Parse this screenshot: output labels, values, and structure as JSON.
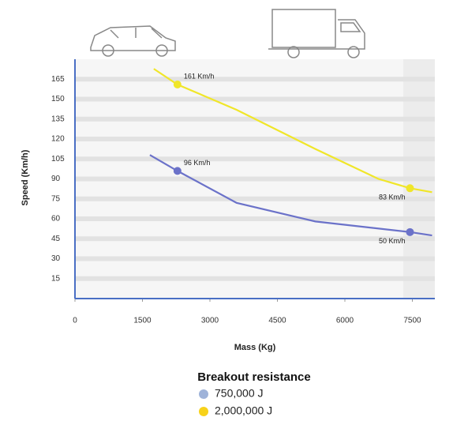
{
  "chart_data": {
    "type": "line",
    "x_label": "Mass (Kg)",
    "y_label": "Speed (Km/h)",
    "legend_title": "Breakout resistance",
    "xlim": [
      0,
      8000
    ],
    "xticks": [
      0,
      1500,
      3000,
      4500,
      6000,
      7500
    ],
    "ylim": [
      0,
      180
    ],
    "yticks": [
      15,
      30,
      45,
      60,
      75,
      90,
      105,
      120,
      135,
      150,
      165
    ],
    "grid": true,
    "series": [
      {
        "name": "750,000 J",
        "color": "#6b72c9",
        "legend_color": "#9fb3d9",
        "x": [
          1665,
          2278,
          3592,
          5344,
          7447,
          7938
        ],
        "values": [
          108,
          96,
          72,
          58,
          50,
          47.5
        ],
        "points": {
          "x": [
            2278,
            7447
          ],
          "values": [
            96,
            50
          ],
          "value_labels": [
            "96 Km/h",
            "50 Km/h"
          ]
        }
      },
      {
        "name": "2,000,000 J",
        "color": "#f0e629",
        "legend_color": "#f7d21a",
        "x": [
          1752,
          2278,
          3592,
          5344,
          6746,
          7447,
          7938
        ],
        "values": [
          172.8,
          161,
          142,
          112.5,
          90,
          83,
          80
        ],
        "points": {
          "x": [
            2278,
            7447
          ],
          "values": [
            161,
            83
          ],
          "value_labels": [
            "161 Km/h",
            "83 Km/h"
          ]
        }
      }
    ]
  }
}
